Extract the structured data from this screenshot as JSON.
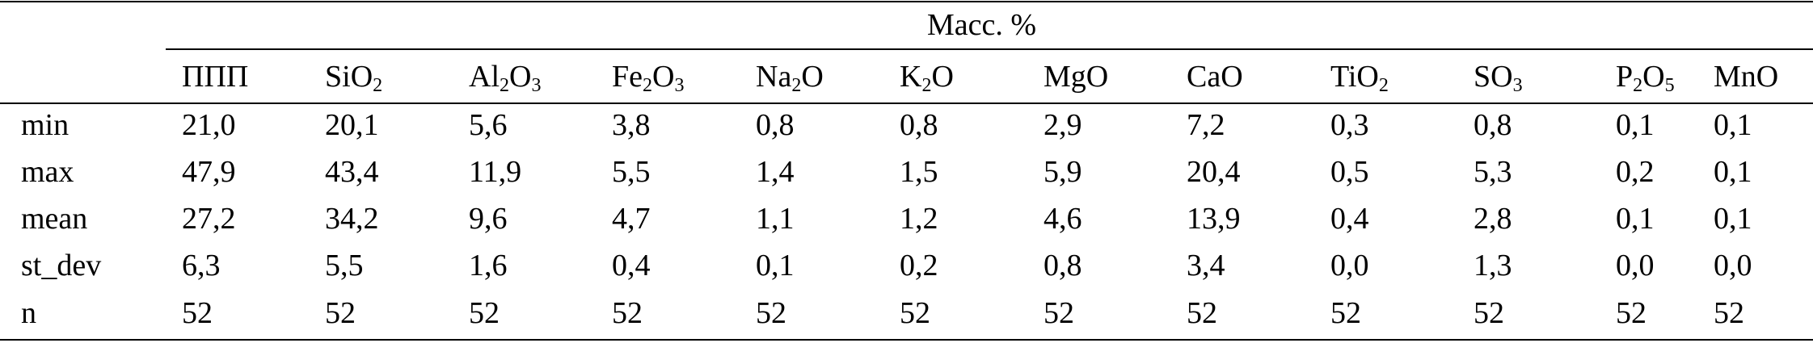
{
  "table": {
    "group_header": "Масс. %",
    "columns": [
      {
        "base": "ППП",
        "parts": [
          {
            "t": "ППП"
          }
        ]
      },
      {
        "base": "SiO2",
        "parts": [
          {
            "t": "SiO"
          },
          {
            "s": "2"
          }
        ]
      },
      {
        "base": "Al2O3",
        "parts": [
          {
            "t": "Al"
          },
          {
            "s": "2"
          },
          {
            "t": "O"
          },
          {
            "s": "3"
          }
        ]
      },
      {
        "base": "Fe2O3",
        "parts": [
          {
            "t": "Fe"
          },
          {
            "s": "2"
          },
          {
            "t": "O"
          },
          {
            "s": "3"
          }
        ]
      },
      {
        "base": "Na2O",
        "parts": [
          {
            "t": "Na"
          },
          {
            "s": "2"
          },
          {
            "t": "O"
          }
        ]
      },
      {
        "base": "K2O",
        "parts": [
          {
            "t": "K"
          },
          {
            "s": "2"
          },
          {
            "t": "O"
          }
        ]
      },
      {
        "base": "MgO",
        "parts": [
          {
            "t": "MgO"
          }
        ]
      },
      {
        "base": "CaO",
        "parts": [
          {
            "t": "CaO"
          }
        ]
      },
      {
        "base": "TiO2",
        "parts": [
          {
            "t": "TiO"
          },
          {
            "s": "2"
          }
        ]
      },
      {
        "base": "SO3",
        "parts": [
          {
            "t": "SO"
          },
          {
            "s": "3"
          }
        ]
      },
      {
        "base": "P2O5",
        "parts": [
          {
            "t": "P"
          },
          {
            "s": "2"
          },
          {
            "t": "O"
          },
          {
            "s": "5"
          }
        ]
      },
      {
        "base": "MnO",
        "parts": [
          {
            "t": "MnO"
          }
        ]
      }
    ],
    "rows": [
      {
        "label": "min",
        "values": [
          "21,0",
          "20,1",
          "5,6",
          "3,8",
          "0,8",
          "0,8",
          "2,9",
          "7,2",
          "0,3",
          "0,8",
          "0,1",
          "0,1"
        ]
      },
      {
        "label": "max",
        "values": [
          "47,9",
          "43,4",
          "11,9",
          "5,5",
          "1,4",
          "1,5",
          "5,9",
          "20,4",
          "0,5",
          "5,3",
          "0,2",
          "0,1"
        ]
      },
      {
        "label": "mean",
        "values": [
          "27,2",
          "34,2",
          "9,6",
          "4,7",
          "1,1",
          "1,2",
          "4,6",
          "13,9",
          "0,4",
          "2,8",
          "0,1",
          "0,1"
        ]
      },
      {
        "label": "st_dev",
        "values": [
          "6,3",
          "5,5",
          "1,6",
          "0,4",
          "0,1",
          "0,2",
          "0,8",
          "3,4",
          "0,0",
          "1,3",
          "0,0",
          "0,0"
        ]
      },
      {
        "label": "n",
        "values": [
          "52",
          "52",
          "52",
          "52",
          "52",
          "52",
          "52",
          "52",
          "52",
          "52",
          "52",
          "52"
        ]
      }
    ]
  }
}
